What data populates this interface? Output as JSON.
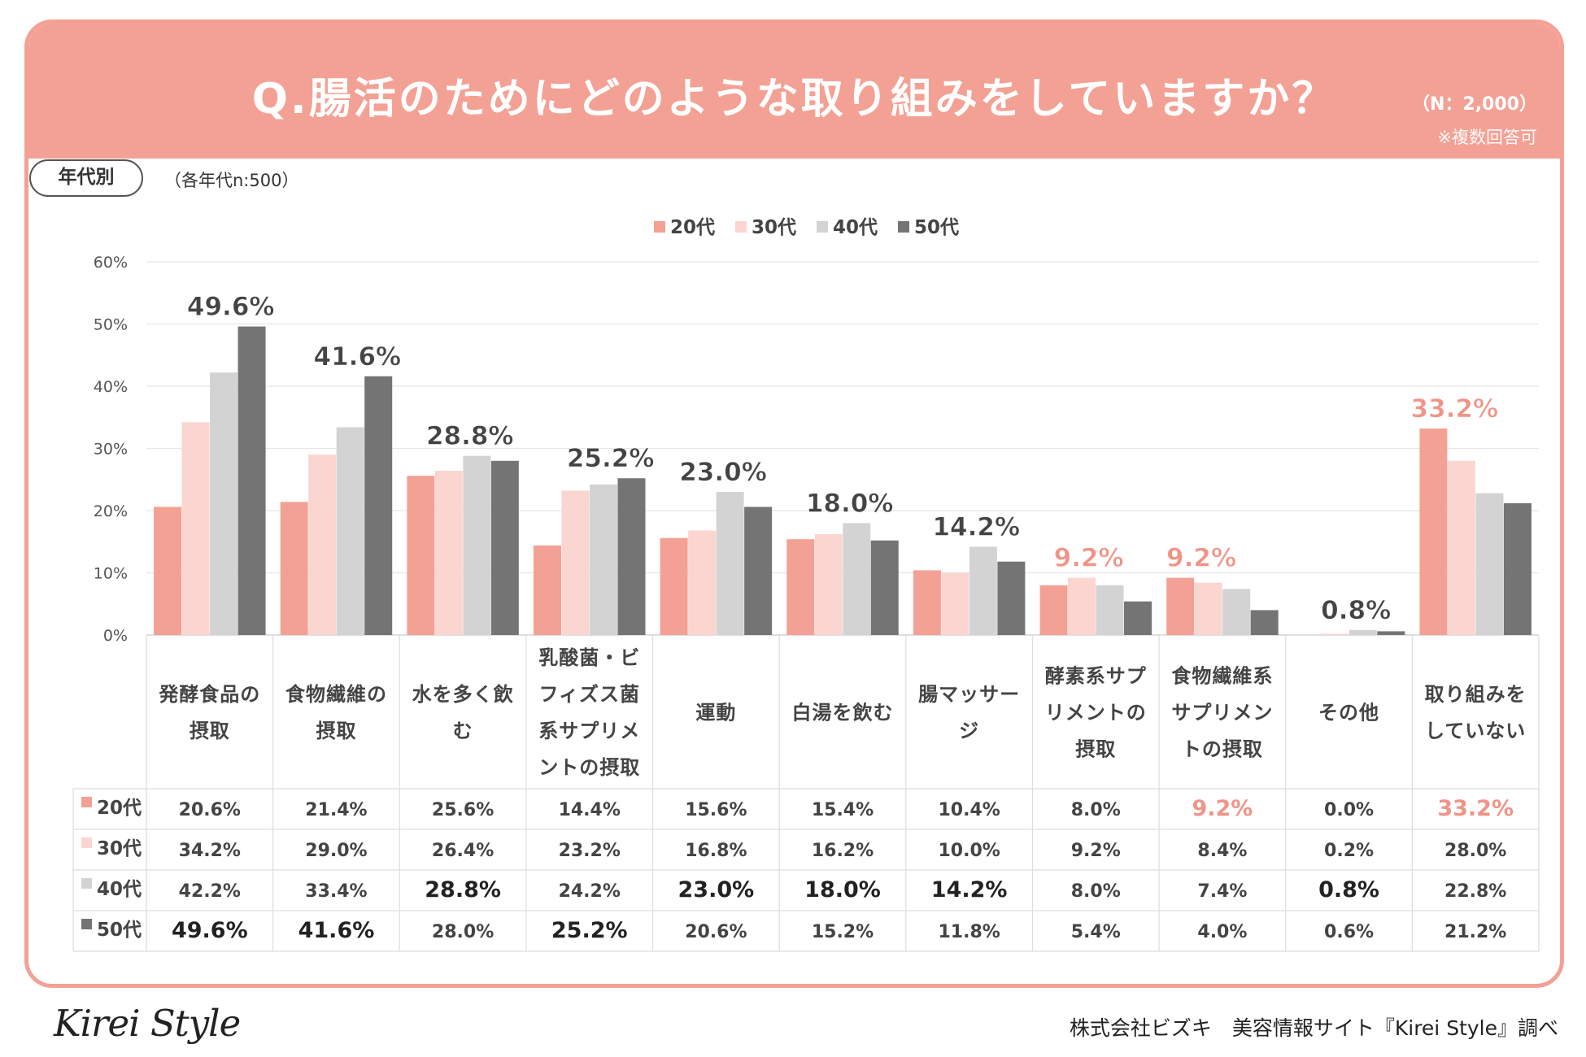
{
  "header": {
    "title": "Q.腸活のためにどのような取り組みをしていますか？",
    "n_label": "（N：2,000）",
    "multi_answer": "※複数回答可"
  },
  "age_tag": "年代別",
  "sample_note": "（各年代n:500）",
  "colors": {
    "header": "#f4a195",
    "s20": "#f4a195",
    "s30": "#fbd5d0",
    "s40": "#d3d3d3",
    "s50": "#747474",
    "highlight_red": "#f09488",
    "label_dark": "#444444"
  },
  "chart_data": {
    "type": "bar",
    "y_ticks": [
      "0%",
      "10%",
      "20%",
      "30%",
      "40%",
      "50%",
      "60%"
    ],
    "ylim": [
      0,
      60
    ],
    "legend": [
      "20代",
      "30代",
      "40代",
      "50代"
    ],
    "categories": [
      [
        "発酵食品の",
        "摂取"
      ],
      [
        "食物繊維の",
        "摂取"
      ],
      [
        "水を多く飲",
        "む"
      ],
      [
        "乳酸菌・ビ",
        "フィズス菌",
        "系サプリメ",
        "ントの摂取"
      ],
      [
        "運動"
      ],
      [
        "白湯を飲む"
      ],
      [
        "腸マッサー",
        "ジ"
      ],
      [
        "酵素系サプ",
        "リメントの",
        "摂取"
      ],
      [
        "食物繊維系",
        "サプリメン",
        "トの摂取"
      ],
      [
        "その他"
      ],
      [
        "取り組みを",
        "していない"
      ]
    ],
    "series": [
      {
        "name": "20代",
        "values": [
          20.6,
          21.4,
          25.6,
          14.4,
          15.6,
          15.4,
          10.4,
          8.0,
          9.2,
          0.0,
          33.2
        ]
      },
      {
        "name": "30代",
        "values": [
          34.2,
          29.0,
          26.4,
          23.2,
          16.8,
          16.2,
          10.0,
          9.2,
          8.4,
          0.2,
          28.0
        ]
      },
      {
        "name": "40代",
        "values": [
          42.2,
          33.4,
          28.8,
          24.2,
          23.0,
          18.0,
          14.2,
          8.0,
          7.4,
          0.8,
          22.8
        ]
      },
      {
        "name": "50代",
        "values": [
          49.6,
          41.6,
          28.0,
          25.2,
          20.6,
          15.2,
          11.8,
          5.4,
          4.0,
          0.6,
          21.2
        ]
      }
    ],
    "data_labels": [
      {
        "category": 0,
        "series": 3,
        "text": "49.6%",
        "style": "dark"
      },
      {
        "category": 1,
        "series": 3,
        "text": "41.6%",
        "style": "dark"
      },
      {
        "category": 2,
        "series": 2,
        "text": "28.8%",
        "style": "dark"
      },
      {
        "category": 3,
        "series": 3,
        "text": "25.2%",
        "style": "dark"
      },
      {
        "category": 4,
        "series": 2,
        "text": "23.0%",
        "style": "dark"
      },
      {
        "category": 5,
        "series": 2,
        "text": "18.0%",
        "style": "dark"
      },
      {
        "category": 6,
        "series": 2,
        "text": "14.2%",
        "style": "dark"
      },
      {
        "category": 7,
        "series": 1,
        "text": "9.2%",
        "style": "red"
      },
      {
        "category": 8,
        "series": 0,
        "text": "9.2%",
        "style": "red"
      },
      {
        "category": 9,
        "series": 2,
        "text": "0.8%",
        "style": "dark"
      },
      {
        "category": 10,
        "series": 0,
        "text": "33.2%",
        "style": "red"
      }
    ],
    "table": [
      [
        "20.6%",
        "21.4%",
        "25.6%",
        "14.4%",
        "15.6%",
        "15.4%",
        "10.4%",
        "8.0%",
        "9.2%",
        "0.0%",
        "33.2%"
      ],
      [
        "34.2%",
        "29.0%",
        "26.4%",
        "23.2%",
        "16.8%",
        "16.2%",
        "10.0%",
        "9.2%",
        "8.4%",
        "0.2%",
        "28.0%"
      ],
      [
        "42.2%",
        "33.4%",
        "28.8%",
        "24.2%",
        "23.0%",
        "18.0%",
        "14.2%",
        "8.0%",
        "7.4%",
        "0.8%",
        "22.8%"
      ],
      [
        "49.6%",
        "41.6%",
        "28.0%",
        "25.2%",
        "20.6%",
        "15.2%",
        "11.8%",
        "5.4%",
        "4.0%",
        "0.6%",
        "21.2%"
      ]
    ],
    "table_highlights": {
      "0-8": "red",
      "0-10": "red",
      "2-2": "bold",
      "2-4": "bold",
      "2-5": "bold",
      "2-6": "bold",
      "2-9": "bold",
      "3-0": "bold",
      "3-1": "bold",
      "3-3": "bold"
    }
  },
  "footer": {
    "logo": "Kirei Style",
    "source": "株式会社ビズキ　美容情報サイト『Kirei Style』調べ"
  }
}
